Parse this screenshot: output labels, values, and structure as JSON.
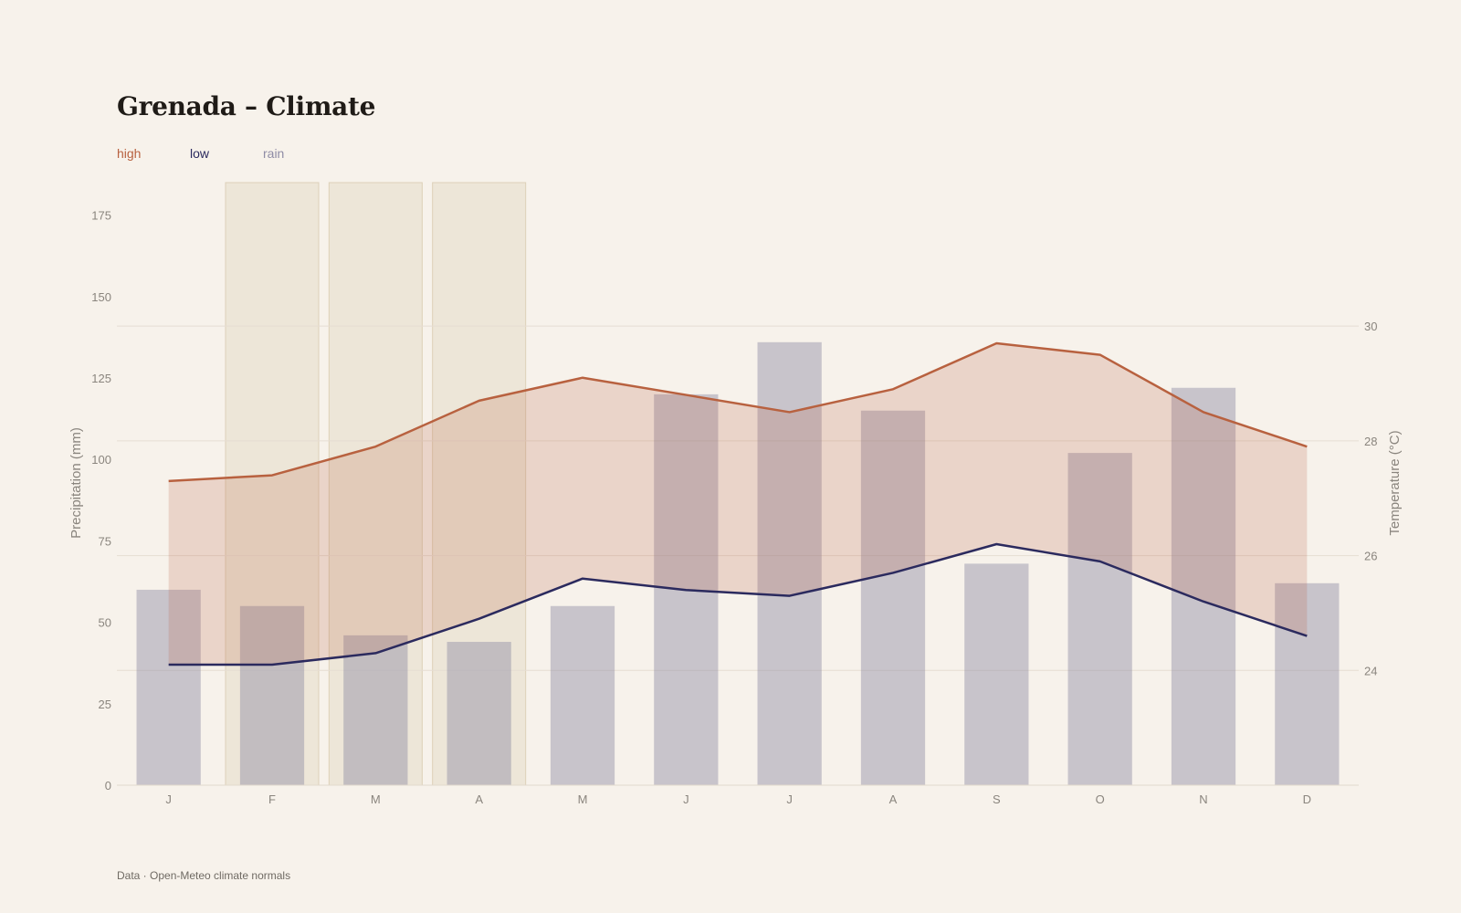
{
  "title": "Grenada – Climate",
  "legend": [
    {
      "label": "high",
      "color": "#b8613f"
    },
    {
      "label": "low",
      "color": "#2b2a5e"
    },
    {
      "label": "rain",
      "color": "#8f8ca5"
    }
  ],
  "source": "Data · Open-Meteo climate normals",
  "chart_data": {
    "type": "bar",
    "categories": [
      "J",
      "F",
      "M",
      "A",
      "M",
      "J",
      "J",
      "A",
      "S",
      "O",
      "N",
      "D"
    ],
    "highlighted_months": [
      1,
      2,
      3
    ],
    "series": [
      {
        "name": "rain",
        "type": "bar",
        "axis": "left",
        "color": "#8f8ca5",
        "values": [
          60,
          55,
          46,
          44,
          55,
          120,
          136,
          115,
          68,
          102,
          122,
          62
        ]
      },
      {
        "name": "high",
        "type": "line",
        "axis": "right",
        "color": "#b8613f",
        "values": [
          27.3,
          27.4,
          27.9,
          28.7,
          29.1,
          28.8,
          28.5,
          28.9,
          29.7,
          29.5,
          28.5,
          27.9
        ]
      },
      {
        "name": "low",
        "type": "line",
        "axis": "right",
        "color": "#2b2a5e",
        "values": [
          24.1,
          24.1,
          24.3,
          24.9,
          25.6,
          25.4,
          25.3,
          25.7,
          26.2,
          25.9,
          25.2,
          24.6
        ]
      }
    ],
    "ylabel": "Precipitation (mm)",
    "ylabel_right": "Temperature (°C)",
    "yticks": [
      0,
      25,
      50,
      75,
      100,
      125,
      150,
      175
    ],
    "yticks_right": [
      24,
      26,
      28,
      30
    ],
    "ylim": [
      0,
      185
    ],
    "ylim_right": [
      22,
      32.5
    ],
    "grid": true
  }
}
